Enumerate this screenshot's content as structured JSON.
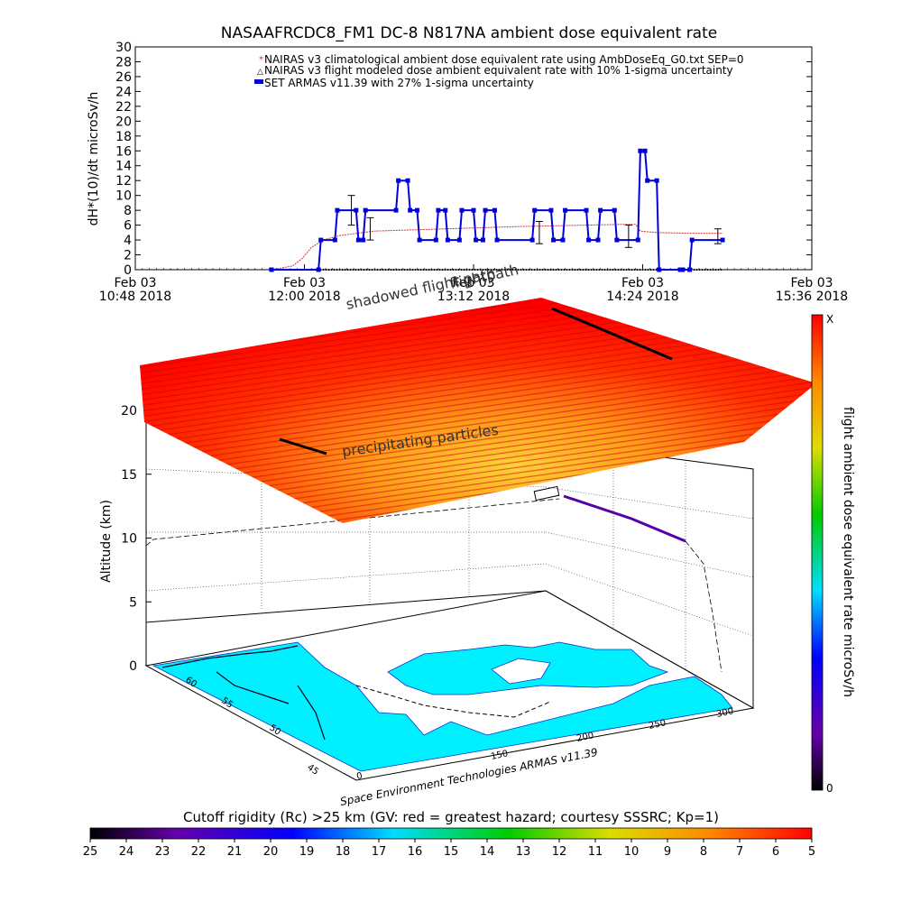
{
  "title": "NASAAFRCDC8_FM1 DC-8    N817NA ambient dose equivalent rate",
  "credit": "Space Environment Technologies ARMAS v11.39",
  "colors": {
    "nairas_clim": "#cc3333",
    "armas": "#0000dd",
    "modeled": "#000000",
    "ocean": "#00eeff",
    "hazard_hot": "#ff0000"
  },
  "chart_data": [
    {
      "type": "line",
      "title": "NASAAFRCDC8_FM1 DC-8    N817NA ambient dose equivalent rate",
      "xlabel": "",
      "ylabel": "dH*(10)/dt microSv/h",
      "ylim": [
        0,
        30
      ],
      "yticks": [
        0,
        2,
        4,
        6,
        8,
        10,
        12,
        14,
        16,
        18,
        20,
        22,
        24,
        26,
        28,
        30
      ],
      "xlim": [
        "10:48",
        "15:36"
      ],
      "xticks": [
        {
          "t": "10:48",
          "line1": "Feb 03",
          "line2": "10:48 2018"
        },
        {
          "t": "12:00",
          "line1": "Feb 03",
          "line2": "12:00 2018"
        },
        {
          "t": "13:12",
          "line1": "Feb 03",
          "line2": "13:12 2018"
        },
        {
          "t": "14:24",
          "line1": "Feb 03",
          "line2": "14:24 2018"
        },
        {
          "t": "15:36",
          "line1": "Feb 03",
          "line2": "15:36 2018"
        }
      ],
      "legend_position": "top-right",
      "legend": [
        "NAIRAS v3 climatological ambient dose equivalent rate using AmbDoseEq_G0.txt SEP=0",
        "NAIRAS v3 flight modeled dose ambient equivalent rate with 10% 1-sigma uncertainty",
        "SET ARMAS v11.39 with 27% 1-sigma uncertainty"
      ],
      "series": [
        {
          "name": "NAIRAS v3 climatological ambient dose equivalent rate using AmbDoseEq_G0.txt SEP=0",
          "x": [
            "11:46",
            "11:55",
            "11:59",
            "12:03",
            "12:08",
            "12:15",
            "12:30",
            "13:00",
            "13:30",
            "14:00",
            "14:15",
            "14:21",
            "14:23",
            "14:30",
            "14:45",
            "14:58"
          ],
          "values": [
            0,
            0.5,
            1.5,
            3,
            4,
            4.6,
            5.2,
            5.5,
            5.8,
            6,
            6.1,
            6.1,
            5.2,
            5.0,
            4.9,
            4.9
          ]
        },
        {
          "name": "NAIRAS v3 flight modeled dose ambient equivalent rate with 10% 1-sigma uncertainty",
          "x": [
            "11:46",
            "14:58"
          ],
          "values": [
            0,
            0
          ]
        },
        {
          "name": "SET ARMAS v11.39 with 27% 1-sigma uncertainty",
          "x": [
            "11:46",
            "12:06",
            "12:07",
            "12:13",
            "12:14",
            "12:22",
            "12:23",
            "12:25",
            "12:26",
            "12:39",
            "12:40",
            "12:44",
            "12:45",
            "12:48",
            "12:49",
            "12:56",
            "12:57",
            "13:00",
            "13:01",
            "13:06",
            "13:07",
            "13:12",
            "13:13",
            "13:16",
            "13:17",
            "13:21",
            "13:22",
            "13:37",
            "13:38",
            "13:45",
            "13:46",
            "13:50",
            "13:51",
            "14:00",
            "14:01",
            "14:05",
            "14:06",
            "14:12",
            "14:13",
            "14:22",
            "14:23",
            "14:25",
            "14:26",
            "14:30",
            "14:31",
            "14:40",
            "14:41",
            "14:44",
            "14:45",
            "14:58"
          ],
          "values": [
            0,
            0,
            4,
            4,
            8,
            8,
            4,
            4,
            8,
            8,
            12,
            12,
            8,
            8,
            4,
            4,
            8,
            8,
            4,
            4,
            8,
            8,
            4,
            4,
            8,
            8,
            4,
            4,
            8,
            8,
            4,
            4,
            8,
            8,
            4,
            4,
            8,
            8,
            4,
            4,
            16,
            16,
            12,
            12,
            0,
            0,
            0,
            0,
            4,
            4
          ]
        }
      ],
      "error_bars": [
        {
          "x": "12:20",
          "low": 6,
          "high": 10
        },
        {
          "x": "12:28",
          "low": 4,
          "high": 7
        },
        {
          "x": "13:40",
          "low": 3.5,
          "high": 6.5
        },
        {
          "x": "14:18",
          "low": 3,
          "high": 6
        },
        {
          "x": "14:56",
          "low": 3.5,
          "high": 5.5
        }
      ]
    },
    {
      "type": "scatter",
      "subtype": "3d-map",
      "zlabel": "Altitude (km)",
      "zticks": [
        0,
        5,
        10,
        15,
        20
      ],
      "yticks": [
        45,
        50,
        55,
        60
      ],
      "xticks": [
        150,
        200,
        250,
        300
      ],
      "annotations": [
        "shadowed flight path",
        "precipitating particles",
        "flightpath"
      ],
      "colorbar_vertical": {
        "label": "flight ambient dose equivalent rate microSv/h",
        "top_label": "X",
        "bottom_label": "0"
      },
      "colorbar_horizontal": {
        "label": "Cutoff rigidity (Rc) >25 km (GV: red = greatest hazard; courtesy SSSRC; Kp=1)",
        "ticks": [
          25,
          24,
          23,
          22,
          21,
          20,
          19,
          18,
          17,
          16,
          15,
          14,
          13,
          12,
          11,
          10,
          9,
          8,
          7,
          6,
          5
        ]
      }
    }
  ]
}
